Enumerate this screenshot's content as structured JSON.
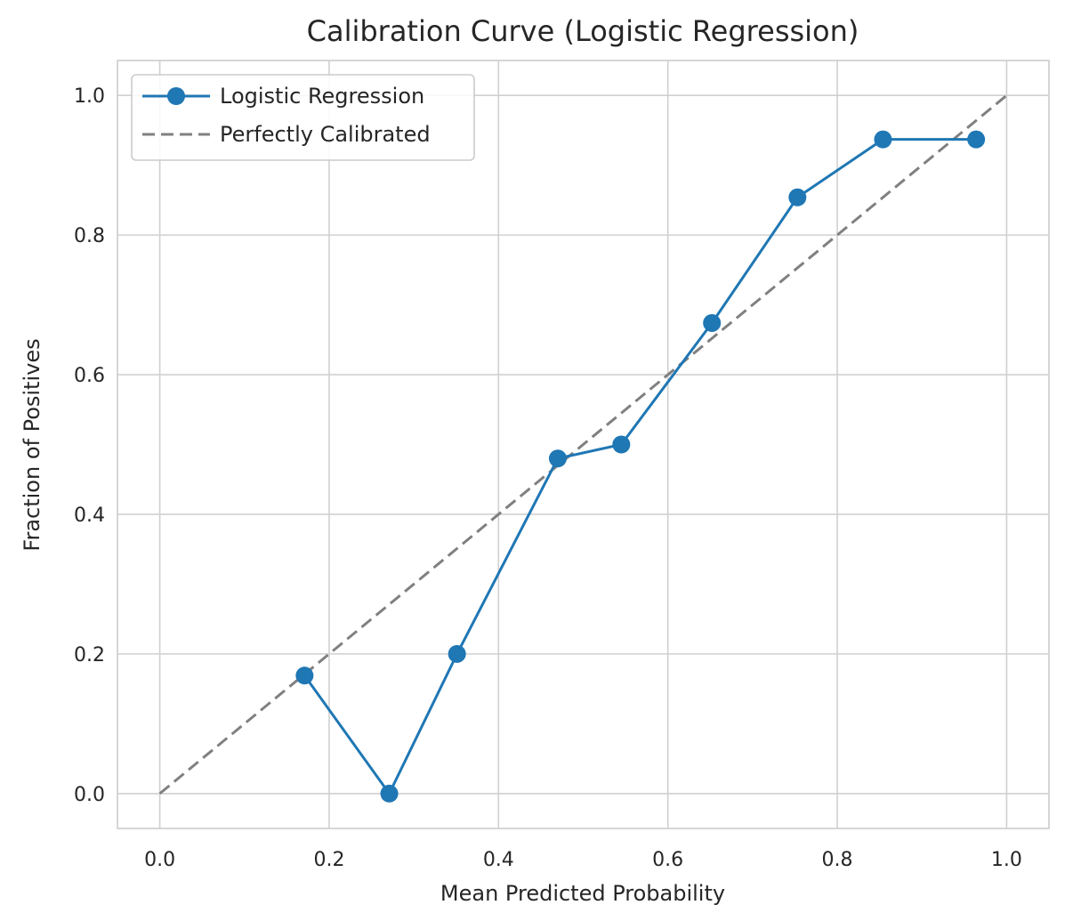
{
  "chart_data": {
    "type": "line",
    "title": "Calibration Curve (Logistic Regression)",
    "xlabel": "Mean Predicted Probability",
    "ylabel": "Fraction of Positives",
    "xlim": [
      -0.05,
      1.05
    ],
    "ylim": [
      -0.05,
      1.05
    ],
    "xticks": [
      0.0,
      0.2,
      0.4,
      0.6,
      0.8,
      1.0
    ],
    "xtick_labels": [
      "0.0",
      "0.2",
      "0.4",
      "0.6",
      "0.8",
      "1.0"
    ],
    "yticks": [
      0.0,
      0.2,
      0.4,
      0.6,
      0.8,
      1.0
    ],
    "ytick_labels": [
      "0.0",
      "0.2",
      "0.4",
      "0.6",
      "0.8",
      "1.0"
    ],
    "grid": true,
    "legend_position": "upper-left",
    "series": [
      {
        "name": "Logistic Regression",
        "style": "solid-line-with-circle-markers",
        "color": "#1f77b4",
        "x": [
          0.171,
          0.271,
          0.351,
          0.47,
          0.545,
          0.652,
          0.753,
          0.854,
          0.964
        ],
        "y": [
          0.169,
          0.0,
          0.2,
          0.48,
          0.5,
          0.674,
          0.854,
          0.937,
          0.937
        ]
      },
      {
        "name": "Perfectly Calibrated",
        "style": "dashed-line",
        "color": "#808080",
        "x": [
          0.0,
          1.0
        ],
        "y": [
          0.0,
          1.0
        ]
      }
    ]
  }
}
